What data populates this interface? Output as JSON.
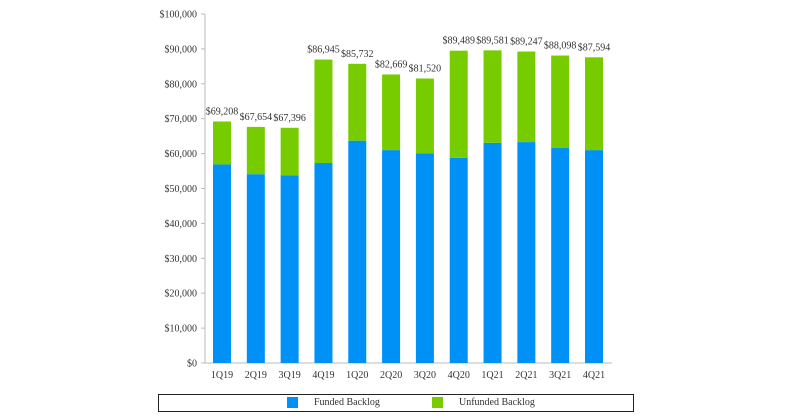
{
  "chart_data": {
    "type": "bar",
    "stacked": true,
    "categories": [
      "1Q19",
      "2Q19",
      "3Q19",
      "4Q19",
      "1Q20",
      "2Q20",
      "3Q20",
      "4Q20",
      "1Q21",
      "2Q21",
      "3Q21",
      "4Q21"
    ],
    "series": [
      {
        "name": "Funded Backlog",
        "color": "#0091f7",
        "values": [
          56900,
          54100,
          53800,
          57300,
          63700,
          61000,
          60100,
          58800,
          63100,
          63300,
          61600,
          61000
        ]
      },
      {
        "name": "Unfunded Backlog",
        "color": "#77cc00",
        "values": [
          12308,
          13554,
          13596,
          29645,
          22032,
          21669,
          21420,
          30689,
          26481,
          25947,
          26498,
          26594
        ]
      }
    ],
    "totals": [
      69208,
      67654,
      67396,
      86945,
      85732,
      82669,
      81520,
      89489,
      89581,
      89247,
      88098,
      87594
    ],
    "total_labels": [
      "$69,208",
      "$67,654",
      "$67,396",
      "$86,945",
      "$85,732",
      "$82,669",
      "$81,520",
      "$89,489",
      "$89,581",
      "$89,247",
      "$88,098",
      "$87,594"
    ],
    "ylim": [
      0,
      100000
    ],
    "yticks": [
      0,
      10000,
      20000,
      30000,
      40000,
      50000,
      60000,
      70000,
      80000,
      90000,
      100000
    ],
    "ytick_labels": [
      "$0",
      "$10,000",
      "$20,000",
      "$30,000",
      "$40,000",
      "$50,000",
      "$60,000",
      "$70,000",
      "$80,000",
      "$90,000",
      "$100,000"
    ],
    "grid": false,
    "legend": "bottom",
    "title": "",
    "xlabel": "",
    "ylabel": ""
  }
}
